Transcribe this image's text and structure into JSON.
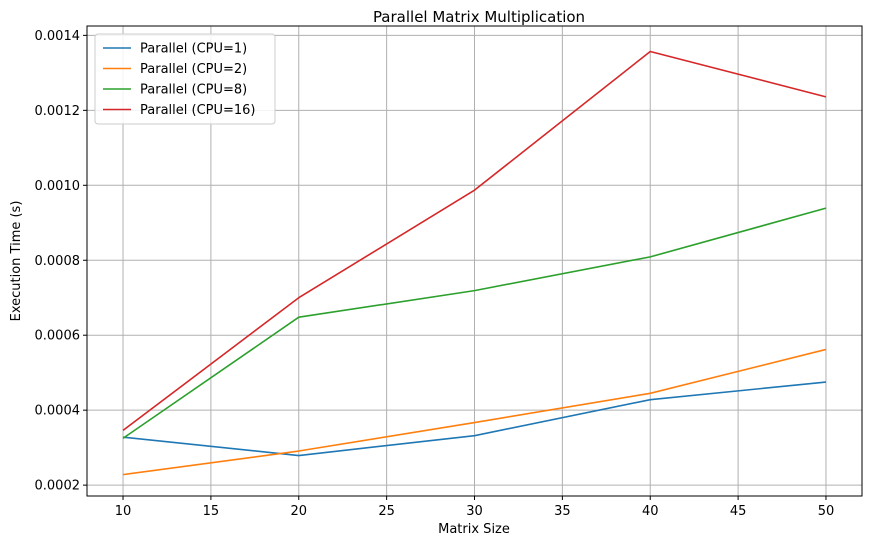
{
  "chart_data": {
    "type": "line",
    "title": "Parallel Matrix Multiplication",
    "xlabel": "Matrix Size",
    "ylabel": "Execution Time (s)",
    "x": [
      10,
      20,
      30,
      40,
      50
    ],
    "xlim": [
      7.95,
      52.05
    ],
    "ylim": [
      0.000171,
      0.001425
    ],
    "xticks": [
      10,
      15,
      20,
      25,
      30,
      35,
      40,
      45,
      50
    ],
    "yticks": [
      0.0002,
      0.0004,
      0.0006,
      0.0008,
      0.001,
      0.0012,
      0.0014
    ],
    "ytick_labels": [
      "0.0002",
      "0.0004",
      "0.0006",
      "0.0008",
      "0.0010",
      "0.0012",
      "0.0014"
    ],
    "grid": true,
    "legend_position": "top-left",
    "series": [
      {
        "name": "Parallel (CPU=1)",
        "color": "#1f77b4",
        "values": [
          0.000328,
          0.000279,
          0.000332,
          0.000428,
          0.000475
        ]
      },
      {
        "name": "Parallel (CPU=2)",
        "color": "#ff7f0e",
        "values": [
          0.000228,
          0.000291,
          0.000367,
          0.000445,
          0.000562
        ]
      },
      {
        "name": "Parallel (CPU=8)",
        "color": "#2ca02c",
        "values": [
          0.000325,
          0.000648,
          0.000719,
          0.000809,
          0.000939
        ]
      },
      {
        "name": "Parallel (CPU=16)",
        "color": "#d62728",
        "values": [
          0.000346,
          0.0007,
          0.000987,
          0.001357,
          0.001236
        ]
      }
    ]
  }
}
